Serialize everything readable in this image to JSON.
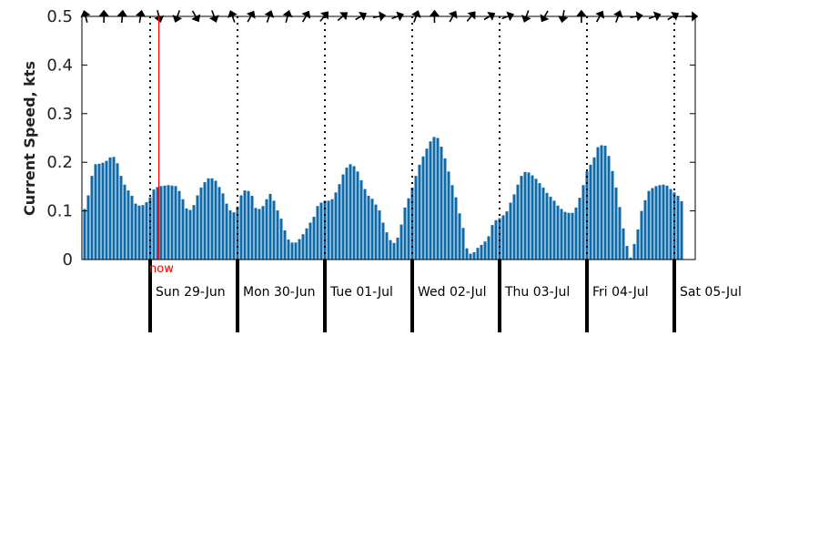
{
  "chart_data": {
    "type": "bar",
    "ylabel": "Current Speed, kts",
    "ylim": [
      0,
      0.5
    ],
    "yticks": [
      0,
      0.1,
      0.2,
      0.3,
      0.4,
      0.5
    ],
    "ytick_labels": [
      "0",
      "0.1",
      "0.2",
      "0.3",
      "0.4",
      "0.5"
    ],
    "x_range_hours": [
      0,
      168
    ],
    "bar_color": "#0e6aa8",
    "now_color": "#ff0000",
    "now_label": "now",
    "now_hour": 2.4,
    "days": [
      {
        "label": "Sun 29-Jun",
        "start_hour": 0
      },
      {
        "label": "Mon 30-Jun",
        "start_hour": 24
      },
      {
        "label": "Tue 01-Jul",
        "start_hour": 48
      },
      {
        "label": "Wed 02-Jul",
        "start_hour": 72
      },
      {
        "label": "Thu 03-Jul",
        "start_hour": 96
      },
      {
        "label": "Fri 04-Jul",
        "start_hour": 120
      },
      {
        "label": "Sat 05-Jul",
        "start_hour": 144
      }
    ],
    "x_start_hour": -19,
    "values": [
      0.101,
      0.104,
      0.132,
      0.172,
      0.196,
      0.197,
      0.199,
      0.203,
      0.21,
      0.211,
      0.198,
      0.172,
      0.154,
      0.142,
      0.131,
      0.115,
      0.111,
      0.112,
      0.118,
      0.128,
      0.144,
      0.149,
      0.151,
      0.152,
      0.153,
      0.152,
      0.151,
      0.141,
      0.124,
      0.105,
      0.102,
      0.112,
      0.132,
      0.148,
      0.159,
      0.167,
      0.167,
      0.162,
      0.149,
      0.136,
      0.115,
      0.101,
      0.097,
      0.109,
      0.132,
      0.142,
      0.141,
      0.131,
      0.106,
      0.104,
      0.11,
      0.124,
      0.135,
      0.121,
      0.101,
      0.084,
      0.06,
      0.041,
      0.035,
      0.035,
      0.042,
      0.052,
      0.064,
      0.076,
      0.088,
      0.11,
      0.117,
      0.121,
      0.121,
      0.124,
      0.138,
      0.155,
      0.175,
      0.189,
      0.196,
      0.192,
      0.181,
      0.163,
      0.145,
      0.131,
      0.125,
      0.113,
      0.101,
      0.076,
      0.056,
      0.04,
      0.034,
      0.045,
      0.072,
      0.107,
      0.126,
      0.148,
      0.172,
      0.195,
      0.212,
      0.228,
      0.243,
      0.252,
      0.25,
      0.232,
      0.208,
      0.181,
      0.153,
      0.128,
      0.095,
      0.065,
      0.023,
      0.012,
      0.015,
      0.024,
      0.03,
      0.037,
      0.048,
      0.071,
      0.081,
      0.085,
      0.091,
      0.099,
      0.117,
      0.134,
      0.154,
      0.172,
      0.18,
      0.179,
      0.173,
      0.166,
      0.157,
      0.148,
      0.137,
      0.129,
      0.121,
      0.111,
      0.104,
      0.098,
      0.096,
      0.096,
      0.107,
      0.127,
      0.153,
      0.182,
      0.195,
      0.21,
      0.231,
      0.235,
      0.234,
      0.213,
      0.182,
      0.148,
      0.108,
      0.064,
      0.028,
      0.004,
      0.032,
      0.062,
      0.1,
      0.122,
      0.141,
      0.147,
      0.151,
      0.153,
      0.154,
      0.152,
      0.145,
      0.138,
      0.131,
      0.12
    ],
    "directions_deg": [
      255,
      270,
      275,
      280,
      75,
      110,
      60,
      70,
      250,
      300,
      290,
      285,
      300,
      310,
      320,
      330,
      350,
      340,
      290,
      270,
      300,
      310,
      330,
      340,
      110,
      120,
      100,
      270,
      300,
      290,
      350,
      340,
      330,
      0
    ]
  }
}
